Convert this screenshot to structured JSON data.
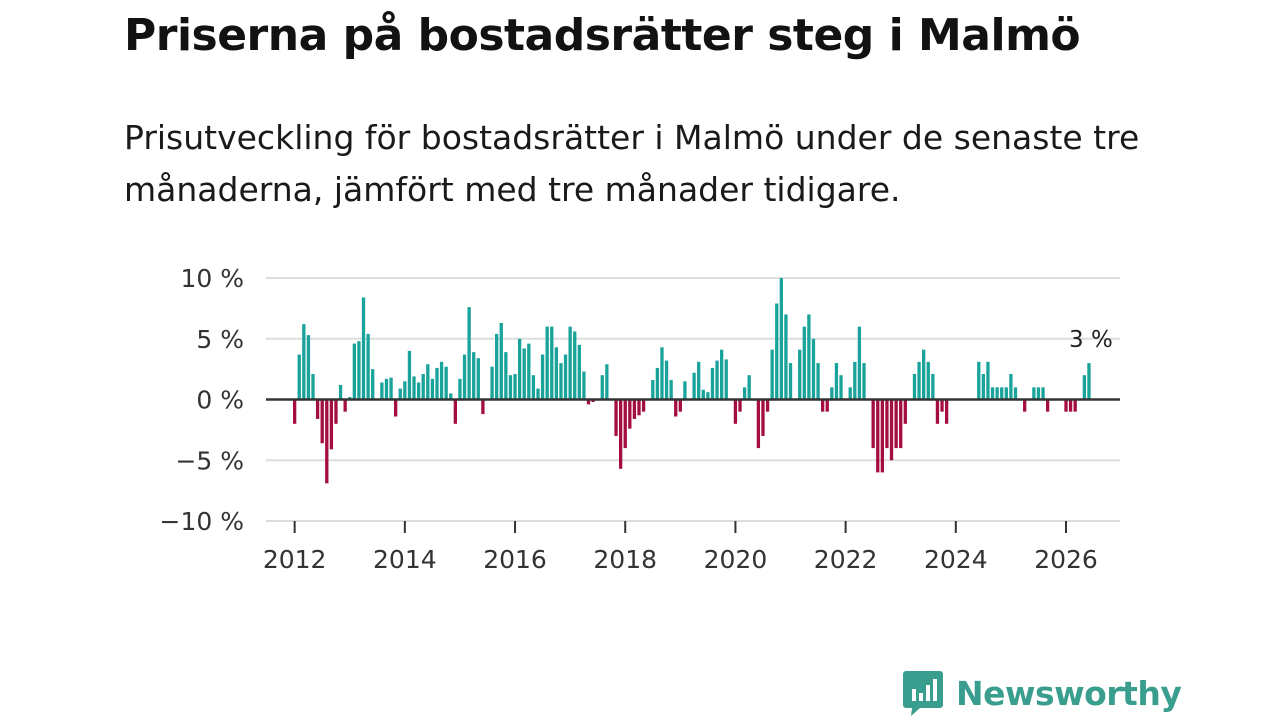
{
  "header": {
    "title": "Priserna på bostadsrätter steg i Malmö",
    "subtitle": "Prisutveckling för bostadsrätter i Malmö under de senaste tre månaderna, jämfört med tre månader tidigare."
  },
  "brand": {
    "name": "Newsworthy",
    "color": "#3a9e8f",
    "logo_icon": "bar-chart-speech-bubble-icon"
  },
  "colors": {
    "positive": "#1aa39a",
    "negative": "#a30e3e",
    "grid": "#dddddd",
    "zero_line": "#333333"
  },
  "chart_data": {
    "type": "bar",
    "title": "Priserna på bostadsrätter steg i Malmö",
    "subtitle": "Prisutveckling för bostadsrätter i Malmö under de senaste tre månaderna, jämfört med tre månader tidigare.",
    "unit": "%",
    "frequency": "monthly",
    "start": "2012-01",
    "ylim": [
      -10,
      10
    ],
    "y_ticks": [
      10,
      5,
      0,
      -5,
      -10
    ],
    "y_tick_labels": [
      "10 %",
      "5 %",
      "0 %",
      "−5 %",
      "−10 %"
    ],
    "x_ticks": [
      2012,
      2014,
      2016,
      2018,
      2020,
      2022,
      2024,
      2026
    ],
    "x_tick_labels": [
      "2012",
      "2014",
      "2016",
      "2018",
      "2020",
      "2022",
      "2024",
      "2026"
    ],
    "grid": true,
    "annotation": {
      "text": "3 %",
      "at": "last"
    },
    "values": [
      -2,
      3.7,
      6.2,
      5.3,
      2.1,
      -1.6,
      -3.6,
      -6.9,
      -4.1,
      -2,
      1.2,
      -1,
      0.2,
      4.6,
      4.8,
      8.4,
      5.4,
      2.5,
      0,
      1.4,
      1.7,
      1.8,
      -1.4,
      0.9,
      1.5,
      4,
      1.9,
      1.4,
      2.1,
      2.9,
      1.7,
      2.6,
      3.1,
      2.7,
      0.5,
      -2,
      1.7,
      3.7,
      7.6,
      3.9,
      3.4,
      -1.2,
      0,
      2.7,
      5.4,
      6.3,
      3.9,
      2,
      2.1,
      5,
      4.2,
      4.6,
      2,
      0.9,
      3.7,
      6,
      6,
      4.3,
      3,
      3.7,
      6,
      5.6,
      4.5,
      2.3,
      -0.4,
      -0.2,
      0,
      2,
      2.9,
      0,
      -3,
      -5.7,
      -4,
      -2.4,
      -1.6,
      -1.3,
      -1,
      0,
      1.6,
      2.6,
      4.3,
      3.2,
      1.6,
      -1.4,
      -1,
      1.5,
      0,
      2.2,
      3.1,
      0.8,
      0.6,
      2.6,
      3.2,
      4.1,
      3.3,
      0,
      -2,
      -1,
      1,
      2,
      0,
      -4,
      -3,
      -1,
      4.1,
      7.9,
      10,
      7,
      3,
      0,
      4.1,
      6,
      7,
      5,
      3,
      -1,
      -1,
      1,
      3,
      2,
      0,
      1,
      3.1,
      6,
      3,
      0,
      -4,
      -6,
      -6,
      -4,
      -5,
      -4,
      -4,
      -2,
      0,
      2.1,
      3.1,
      4.1,
      3.1,
      2.1,
      -2,
      -1,
      -2,
      0,
      0,
      0,
      0,
      0,
      0,
      3.1,
      2.1,
      3.1,
      1,
      1,
      1,
      1,
      2.1,
      1,
      0,
      -1,
      0,
      1,
      1,
      1,
      -1,
      0,
      0,
      0,
      -1,
      -1,
      -1,
      0,
      2,
      3
    ]
  }
}
